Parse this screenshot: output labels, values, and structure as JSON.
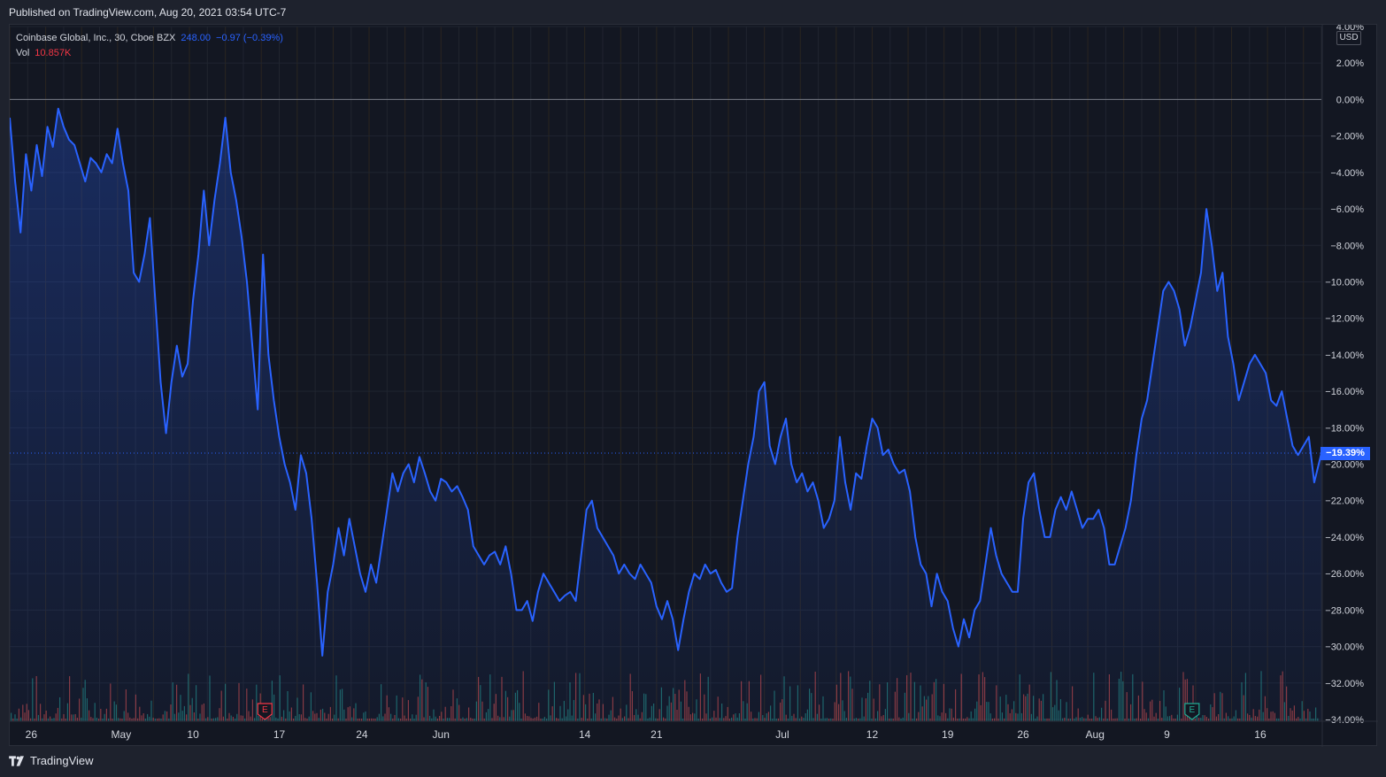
{
  "header": {
    "published_text": "Published on TradingView.com, Aug 20, 2021 03:54 UTC-7"
  },
  "legend": {
    "symbol_line": "Coinbase Global, Inc., 30, Cboe BZX",
    "last_price": "248.00",
    "change": "−0.97 (−0.39%)",
    "volume_label": "Vol",
    "volume_value": "10.857K"
  },
  "price_scale": {
    "currency": "USD",
    "last_value_badge": "−19.39%"
  },
  "footer": {
    "brand": "TradingView"
  },
  "colors": {
    "background": "#131722",
    "line": "#2962ff",
    "vol_up": "#26a69a",
    "vol_down": "#ef5350",
    "earnings_red": "#f23645",
    "earnings_teal": "#22ab94"
  },
  "chart_data": {
    "type": "line",
    "title": "Coinbase Global, Inc., 30, Cboe BZX",
    "y_unit": "%",
    "ylim": [
      -34,
      4
    ],
    "y_ticks": [
      4,
      2,
      0,
      -2,
      -4,
      -6,
      -8,
      -10,
      -12,
      -14,
      -16,
      -18,
      -20,
      -22,
      -24,
      -26,
      -28,
      -30,
      -32,
      -34
    ],
    "y_tick_labels": [
      "4.00%",
      "2.00%",
      "0.00%",
      "−2.00%",
      "−4.00%",
      "−6.00%",
      "−8.00%",
      "−10.00%",
      "−12.00%",
      "−14.00%",
      "−16.00%",
      "−18.00%",
      "−20.00%",
      "−22.00%",
      "−24.00%",
      "−26.00%",
      "−28.00%",
      "−30.00%",
      "−32.00%",
      "−34.00%"
    ],
    "x_ticks": [
      {
        "label": "26",
        "x": 0.6
      },
      {
        "label": "May",
        "x": 3.1
      },
      {
        "label": "10",
        "x": 5.1
      },
      {
        "label": "17",
        "x": 7.5
      },
      {
        "label": "24",
        "x": 9.8
      },
      {
        "label": "Jun",
        "x": 12.0
      },
      {
        "label": "14",
        "x": 16.0
      },
      {
        "label": "21",
        "x": 18.0
      },
      {
        "label": "Jul",
        "x": 21.5
      },
      {
        "label": "12",
        "x": 24.0
      },
      {
        "label": "19",
        "x": 26.1
      },
      {
        "label": "26",
        "x": 28.2
      },
      {
        "label": "Aug",
        "x": 30.2
      },
      {
        "label": "9",
        "x": 32.2
      },
      {
        "label": "16",
        "x": 34.8
      }
    ],
    "x_domain": [
      0,
      36.5
    ],
    "reference_line": 0,
    "last_value": -19.39,
    "series": [
      {
        "values": [
          [
            0.0,
            -1.0
          ],
          [
            0.15,
            -4.5
          ],
          [
            0.3,
            -7.3
          ],
          [
            0.45,
            -3.0
          ],
          [
            0.6,
            -5.0
          ],
          [
            0.75,
            -2.5
          ],
          [
            0.9,
            -4.2
          ],
          [
            1.05,
            -1.5
          ],
          [
            1.2,
            -2.6
          ],
          [
            1.35,
            -0.5
          ],
          [
            1.5,
            -1.5
          ],
          [
            1.65,
            -2.2
          ],
          [
            1.8,
            -2.5
          ],
          [
            1.95,
            -3.5
          ],
          [
            2.1,
            -4.5
          ],
          [
            2.25,
            -3.2
          ],
          [
            2.4,
            -3.5
          ],
          [
            2.55,
            -4.0
          ],
          [
            2.7,
            -3.0
          ],
          [
            2.85,
            -3.5
          ],
          [
            3.0,
            -1.6
          ],
          [
            3.15,
            -3.5
          ],
          [
            3.3,
            -5.0
          ],
          [
            3.45,
            -9.5
          ],
          [
            3.6,
            -10.0
          ],
          [
            3.75,
            -8.5
          ],
          [
            3.9,
            -6.5
          ],
          [
            4.05,
            -11.0
          ],
          [
            4.2,
            -15.5
          ],
          [
            4.35,
            -18.3
          ],
          [
            4.5,
            -15.5
          ],
          [
            4.65,
            -13.5
          ],
          [
            4.8,
            -15.2
          ],
          [
            4.95,
            -14.5
          ],
          [
            5.1,
            -11.0
          ],
          [
            5.25,
            -8.5
          ],
          [
            5.4,
            -5.0
          ],
          [
            5.55,
            -8.0
          ],
          [
            5.7,
            -5.5
          ],
          [
            5.85,
            -3.5
          ],
          [
            6.0,
            -1.0
          ],
          [
            6.15,
            -4.0
          ],
          [
            6.3,
            -5.5
          ],
          [
            6.45,
            -7.5
          ],
          [
            6.6,
            -10.0
          ],
          [
            6.75,
            -13.5
          ],
          [
            6.9,
            -17.0
          ],
          [
            7.05,
            -8.5
          ],
          [
            7.2,
            -14.0
          ],
          [
            7.35,
            -16.5
          ],
          [
            7.5,
            -18.5
          ],
          [
            7.65,
            -20.0
          ],
          [
            7.8,
            -21.0
          ],
          [
            7.95,
            -22.5
          ],
          [
            8.1,
            -19.5
          ],
          [
            8.25,
            -20.5
          ],
          [
            8.4,
            -23.0
          ],
          [
            8.55,
            -26.5
          ],
          [
            8.7,
            -30.5
          ],
          [
            8.85,
            -27.0
          ],
          [
            9.0,
            -25.5
          ],
          [
            9.15,
            -23.5
          ],
          [
            9.3,
            -25.0
          ],
          [
            9.45,
            -23.0
          ],
          [
            9.6,
            -24.5
          ],
          [
            9.75,
            -26.0
          ],
          [
            9.9,
            -27.0
          ],
          [
            10.05,
            -25.5
          ],
          [
            10.2,
            -26.5
          ],
          [
            10.35,
            -24.5
          ],
          [
            10.5,
            -22.5
          ],
          [
            10.65,
            -20.5
          ],
          [
            10.8,
            -21.5
          ],
          [
            10.95,
            -20.5
          ],
          [
            11.1,
            -20.0
          ],
          [
            11.25,
            -21.0
          ],
          [
            11.4,
            -19.6
          ],
          [
            11.55,
            -20.5
          ],
          [
            11.7,
            -21.5
          ],
          [
            11.85,
            -22.0
          ],
          [
            12.0,
            -20.8
          ],
          [
            12.15,
            -21.0
          ],
          [
            12.3,
            -21.5
          ],
          [
            12.45,
            -21.2
          ],
          [
            12.6,
            -21.8
          ],
          [
            12.75,
            -22.5
          ],
          [
            12.9,
            -24.5
          ],
          [
            13.05,
            -25.0
          ],
          [
            13.2,
            -25.5
          ],
          [
            13.35,
            -25.0
          ],
          [
            13.5,
            -24.8
          ],
          [
            13.65,
            -25.5
          ],
          [
            13.8,
            -24.5
          ],
          [
            13.95,
            -26.0
          ],
          [
            14.1,
            -28.0
          ],
          [
            14.25,
            -28.0
          ],
          [
            14.4,
            -27.5
          ],
          [
            14.55,
            -28.6
          ],
          [
            14.7,
            -27.0
          ],
          [
            14.85,
            -26.0
          ],
          [
            15.0,
            -26.5
          ],
          [
            15.15,
            -27.0
          ],
          [
            15.3,
            -27.5
          ],
          [
            15.45,
            -27.2
          ],
          [
            15.6,
            -27.0
          ],
          [
            15.75,
            -27.5
          ],
          [
            15.9,
            -25.0
          ],
          [
            16.05,
            -22.5
          ],
          [
            16.2,
            -22.0
          ],
          [
            16.35,
            -23.5
          ],
          [
            16.5,
            -24.0
          ],
          [
            16.65,
            -24.5
          ],
          [
            16.8,
            -25.0
          ],
          [
            16.95,
            -26.0
          ],
          [
            17.1,
            -25.5
          ],
          [
            17.25,
            -26.0
          ],
          [
            17.4,
            -26.3
          ],
          [
            17.55,
            -25.5
          ],
          [
            17.7,
            -26.0
          ],
          [
            17.85,
            -26.5
          ],
          [
            18.0,
            -27.8
          ],
          [
            18.15,
            -28.5
          ],
          [
            18.3,
            -27.5
          ],
          [
            18.45,
            -28.5
          ],
          [
            18.6,
            -30.2
          ],
          [
            18.75,
            -28.5
          ],
          [
            18.9,
            -27.0
          ],
          [
            19.05,
            -26.0
          ],
          [
            19.2,
            -26.3
          ],
          [
            19.35,
            -25.5
          ],
          [
            19.5,
            -26.0
          ],
          [
            19.65,
            -25.8
          ],
          [
            19.8,
            -26.5
          ],
          [
            19.95,
            -27.0
          ],
          [
            20.1,
            -26.8
          ],
          [
            20.25,
            -24.0
          ],
          [
            20.4,
            -22.0
          ],
          [
            20.55,
            -20.0
          ],
          [
            20.7,
            -18.5
          ],
          [
            20.85,
            -16.0
          ],
          [
            21.0,
            -15.5
          ],
          [
            21.15,
            -19.0
          ],
          [
            21.3,
            -20.0
          ],
          [
            21.45,
            -18.5
          ],
          [
            21.6,
            -17.5
          ],
          [
            21.75,
            -20.0
          ],
          [
            21.9,
            -21.0
          ],
          [
            22.05,
            -20.5
          ],
          [
            22.2,
            -21.5
          ],
          [
            22.35,
            -21.0
          ],
          [
            22.5,
            -22.0
          ],
          [
            22.65,
            -23.5
          ],
          [
            22.8,
            -23.0
          ],
          [
            22.95,
            -22.0
          ],
          [
            23.1,
            -18.5
          ],
          [
            23.25,
            -21.0
          ],
          [
            23.4,
            -22.5
          ],
          [
            23.55,
            -20.5
          ],
          [
            23.7,
            -20.8
          ],
          [
            23.85,
            -19.0
          ],
          [
            24.0,
            -17.5
          ],
          [
            24.15,
            -18.0
          ],
          [
            24.3,
            -19.5
          ],
          [
            24.45,
            -19.2
          ],
          [
            24.6,
            -20.0
          ],
          [
            24.75,
            -20.5
          ],
          [
            24.9,
            -20.3
          ],
          [
            25.05,
            -21.5
          ],
          [
            25.2,
            -24.0
          ],
          [
            25.35,
            -25.5
          ],
          [
            25.5,
            -26.0
          ],
          [
            25.65,
            -27.8
          ],
          [
            25.8,
            -26.0
          ],
          [
            25.95,
            -27.0
          ],
          [
            26.1,
            -27.5
          ],
          [
            26.25,
            -29.0
          ],
          [
            26.4,
            -30.0
          ],
          [
            26.55,
            -28.5
          ],
          [
            26.7,
            -29.5
          ],
          [
            26.85,
            -28.0
          ],
          [
            27.0,
            -27.5
          ],
          [
            27.15,
            -25.5
          ],
          [
            27.3,
            -23.5
          ],
          [
            27.45,
            -25.0
          ],
          [
            27.6,
            -26.0
          ],
          [
            27.75,
            -26.5
          ],
          [
            27.9,
            -27.0
          ],
          [
            28.05,
            -27.0
          ],
          [
            28.2,
            -23.0
          ],
          [
            28.35,
            -21.0
          ],
          [
            28.5,
            -20.5
          ],
          [
            28.65,
            -22.5
          ],
          [
            28.8,
            -24.0
          ],
          [
            28.95,
            -24.0
          ],
          [
            29.1,
            -22.5
          ],
          [
            29.25,
            -21.8
          ],
          [
            29.4,
            -22.5
          ],
          [
            29.55,
            -21.5
          ],
          [
            29.7,
            -22.5
          ],
          [
            29.85,
            -23.5
          ],
          [
            30.0,
            -23.0
          ],
          [
            30.15,
            -23.0
          ],
          [
            30.3,
            -22.5
          ],
          [
            30.45,
            -23.5
          ],
          [
            30.6,
            -25.5
          ],
          [
            30.75,
            -25.5
          ],
          [
            30.9,
            -24.5
          ],
          [
            31.05,
            -23.5
          ],
          [
            31.2,
            -22.0
          ],
          [
            31.35,
            -19.5
          ],
          [
            31.5,
            -17.5
          ],
          [
            31.65,
            -16.5
          ],
          [
            31.8,
            -14.5
          ],
          [
            31.95,
            -12.5
          ],
          [
            32.1,
            -10.5
          ],
          [
            32.25,
            -10.0
          ],
          [
            32.4,
            -10.5
          ],
          [
            32.55,
            -11.5
          ],
          [
            32.7,
            -13.5
          ],
          [
            32.85,
            -12.5
          ],
          [
            33.0,
            -11.0
          ],
          [
            33.15,
            -9.5
          ],
          [
            33.3,
            -6.0
          ],
          [
            33.45,
            -8.0
          ],
          [
            33.6,
            -10.5
          ],
          [
            33.75,
            -9.5
          ],
          [
            33.9,
            -13.0
          ],
          [
            34.05,
            -14.5
          ],
          [
            34.2,
            -16.5
          ],
          [
            34.35,
            -15.5
          ],
          [
            34.5,
            -14.5
          ],
          [
            34.65,
            -14.0
          ],
          [
            34.8,
            -14.5
          ],
          [
            34.95,
            -15.0
          ],
          [
            35.1,
            -16.5
          ],
          [
            35.25,
            -16.8
          ],
          [
            35.4,
            -16.0
          ],
          [
            35.55,
            -17.5
          ],
          [
            35.7,
            -19.0
          ],
          [
            35.85,
            -19.5
          ],
          [
            36.0,
            -19.0
          ],
          [
            36.15,
            -18.5
          ],
          [
            36.3,
            -21.0
          ],
          [
            36.45,
            -19.8
          ],
          [
            36.5,
            -19.39
          ]
        ]
      }
    ]
  }
}
